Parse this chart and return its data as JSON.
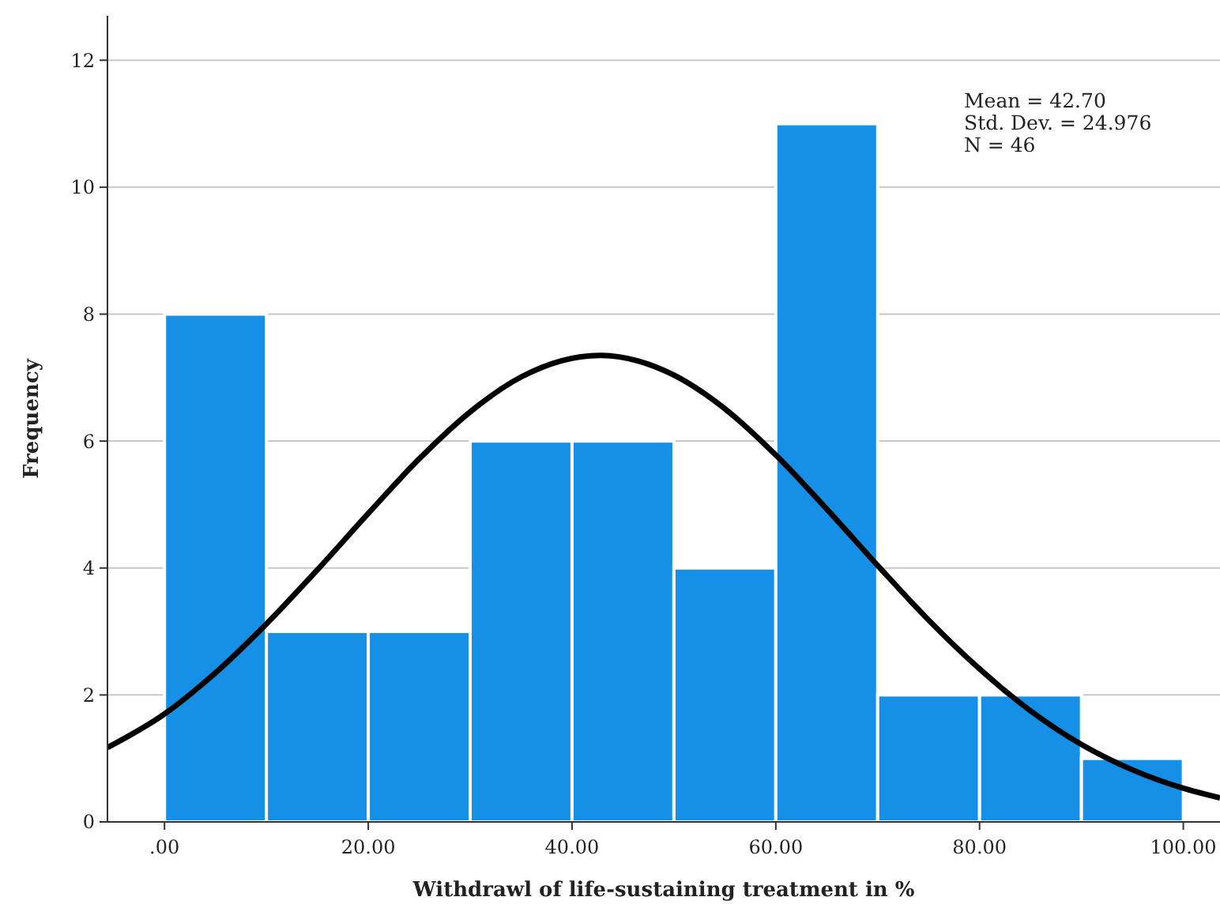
{
  "chart_data": {
    "type": "histogram",
    "xlabel": "Withdrawl of life-sustaining treatment in %",
    "ylabel": "Frequency",
    "bins": [
      0,
      10,
      20,
      30,
      40,
      50,
      60,
      70,
      80,
      90,
      100
    ],
    "values": [
      8,
      3,
      3,
      6,
      6,
      4,
      11,
      2,
      2,
      1
    ],
    "color": "#1590e6",
    "series": [
      {
        "type": "line",
        "color": "#000000",
        "x": [
          -5.6,
          0,
          5,
          10,
          15,
          20,
          25,
          30,
          35,
          42.7,
          50,
          55,
          60,
          65,
          70,
          75,
          80,
          85,
          90,
          95,
          100,
          103.6
        ],
        "values": [
          1.17,
          1.7,
          2.35,
          3.12,
          3.97,
          4.86,
          5.72,
          6.46,
          7.01,
          7.35,
          7.04,
          6.51,
          5.78,
          4.93,
          4.04,
          3.18,
          2.41,
          1.75,
          1.22,
          0.82,
          0.53,
          0.38
        ]
      }
    ],
    "xlim": [
      -5.6,
      103.6
    ],
    "ylim": [
      0,
      12.7
    ],
    "xticks": [
      {
        "value": 0,
        "label": ".00"
      },
      {
        "value": 20,
        "label": "20.00"
      },
      {
        "value": 40,
        "label": "40.00"
      },
      {
        "value": 60,
        "label": "60.00"
      },
      {
        "value": 80,
        "label": "80.00"
      },
      {
        "value": 100,
        "label": "100.00"
      }
    ],
    "yticks": [
      0,
      2,
      4,
      6,
      8,
      10,
      12
    ],
    "grid": "y",
    "marker": "none",
    "line_style": "solid",
    "annotations": [
      "Mean = 42.70",
      "Std. Dev. = 24.976",
      "N = 46"
    ]
  }
}
